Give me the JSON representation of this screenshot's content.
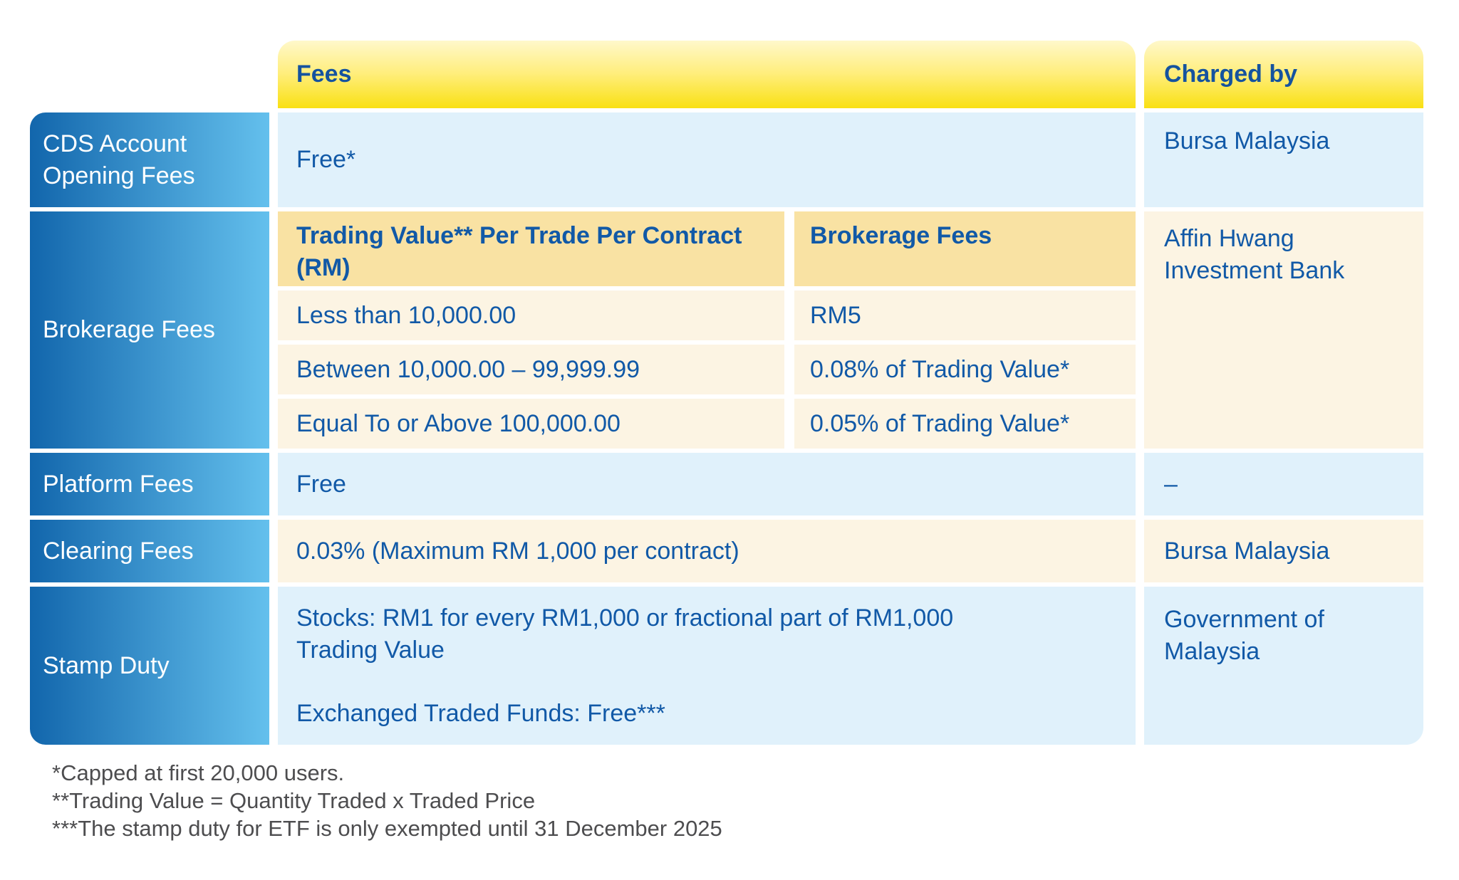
{
  "colors": {
    "header_yellow_top": "#FFF8CB",
    "header_yellow_bottom": "#F9E013",
    "label_blue_left": "#1266AC",
    "label_blue_right": "#64C0ED",
    "row_light_blue": "#E0F1FB",
    "row_cream": "#FCF4E3",
    "subheader_tan": "#F9E2A3",
    "text_blue": "#1159A7",
    "footnote_gray": "#4D4D4F"
  },
  "table": {
    "header": {
      "fees": "Fees",
      "charged_by": "Charged by"
    },
    "rows": {
      "cds": {
        "label": "CDS Account Opening Fees",
        "fee": "Free*",
        "charged_by": "Bursa Malaysia"
      },
      "brokerage": {
        "label": "Brokerage Fees",
        "col1_header": "Trading Value** Per Trade Per Contract\n(RM)",
        "col2_header": "Brokerage Fees",
        "tiers": [
          {
            "range": "Less than 10,000.00",
            "fee": "RM5"
          },
          {
            "range": "Between 10,000.00 – 99,999.99",
            "fee": "0.08% of Trading Value*"
          },
          {
            "range": "Equal To or Above 100,000.00",
            "fee": "0.05% of Trading Value*"
          }
        ],
        "charged_by": "Affin Hwang Investment Bank"
      },
      "platform": {
        "label": "Platform Fees",
        "fee": "Free",
        "charged_by": "–"
      },
      "clearing": {
        "label": "Clearing Fees",
        "fee": "0.03% (Maximum RM 1,000 per contract)",
        "charged_by": "Bursa Malaysia"
      },
      "stamp": {
        "label": "Stamp Duty",
        "fee_lines": [
          "Stocks: RM1 for every RM1,000 or fractional part of RM1,000\nTrading Value",
          "Exchanged Traded Funds: Free***"
        ],
        "charged_by": "Government of Malaysia"
      }
    }
  },
  "footnotes": [
    "*Capped at first 20,000 users.",
    "**Trading Value = Quantity Traded x Traded Price",
    "***The stamp duty for ETF is only exempted until 31 December 2025"
  ]
}
